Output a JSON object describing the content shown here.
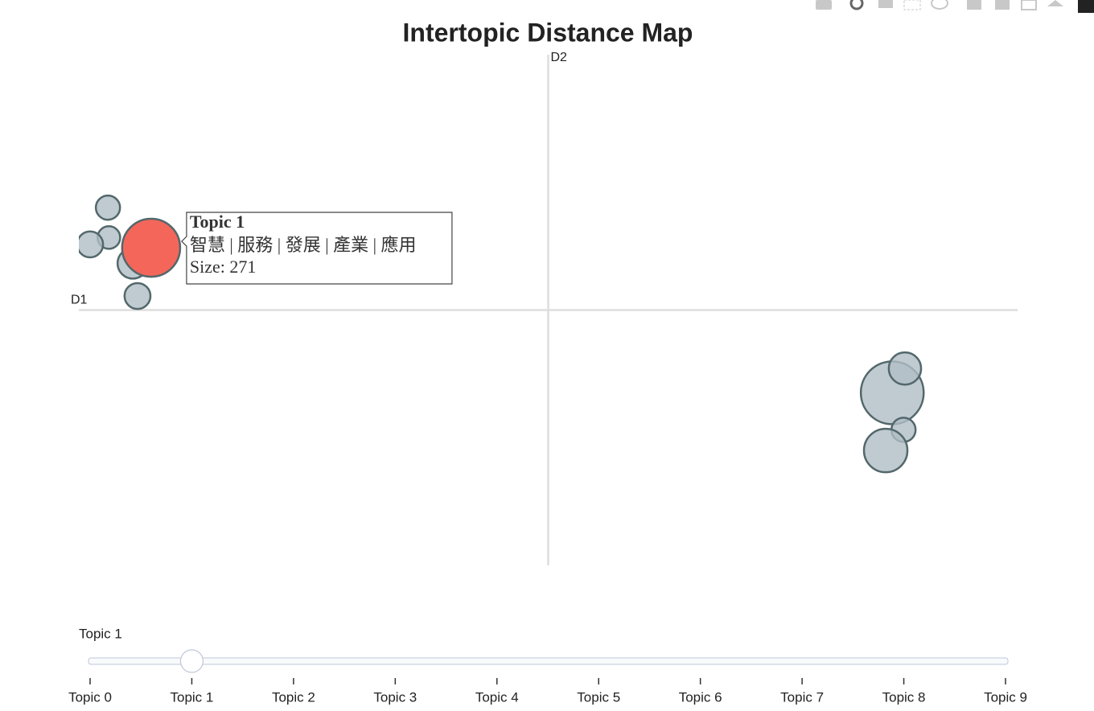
{
  "chart_data": {
    "type": "scatter",
    "title": "Intertopic Distance Map",
    "xlabel": "D1",
    "ylabel": "D2",
    "xlim": [
      -10,
      10
    ],
    "ylim": [
      -10,
      10
    ],
    "x": [
      7.33,
      -8.46,
      -9.38,
      -9.36,
      -9.76,
      -8.85,
      -8.75,
      7.6,
      7.57,
      7.19
    ],
    "y": [
      -3.24,
      2.44,
      4.01,
      2.84,
      2.57,
      1.83,
      0.55,
      -2.29,
      -4.69,
      -5.5
    ],
    "sizes": [
      318,
      271,
      47,
      41,
      54,
      75,
      54,
      84,
      47,
      152
    ],
    "size_labels": [
      null,
      "Size: 271",
      null,
      null,
      null,
      null,
      null,
      null,
      null,
      null
    ],
    "words": [
      null,
      "智慧 | 服務 | 發展 | 產業 | 應用",
      null,
      null,
      null,
      null,
      null,
      null,
      null,
      null
    ],
    "color": "#b0bec5",
    "highlight_color": "#f4665a",
    "edge_color": "#53686b",
    "slider": {
      "steps": [
        "Topic 0",
        "Topic 1",
        "Topic 2",
        "Topic 3",
        "Topic 4",
        "Topic 5",
        "Topic 6",
        "Topic 7",
        "Topic 8",
        "Topic 9"
      ],
      "active": 1
    }
  }
}
